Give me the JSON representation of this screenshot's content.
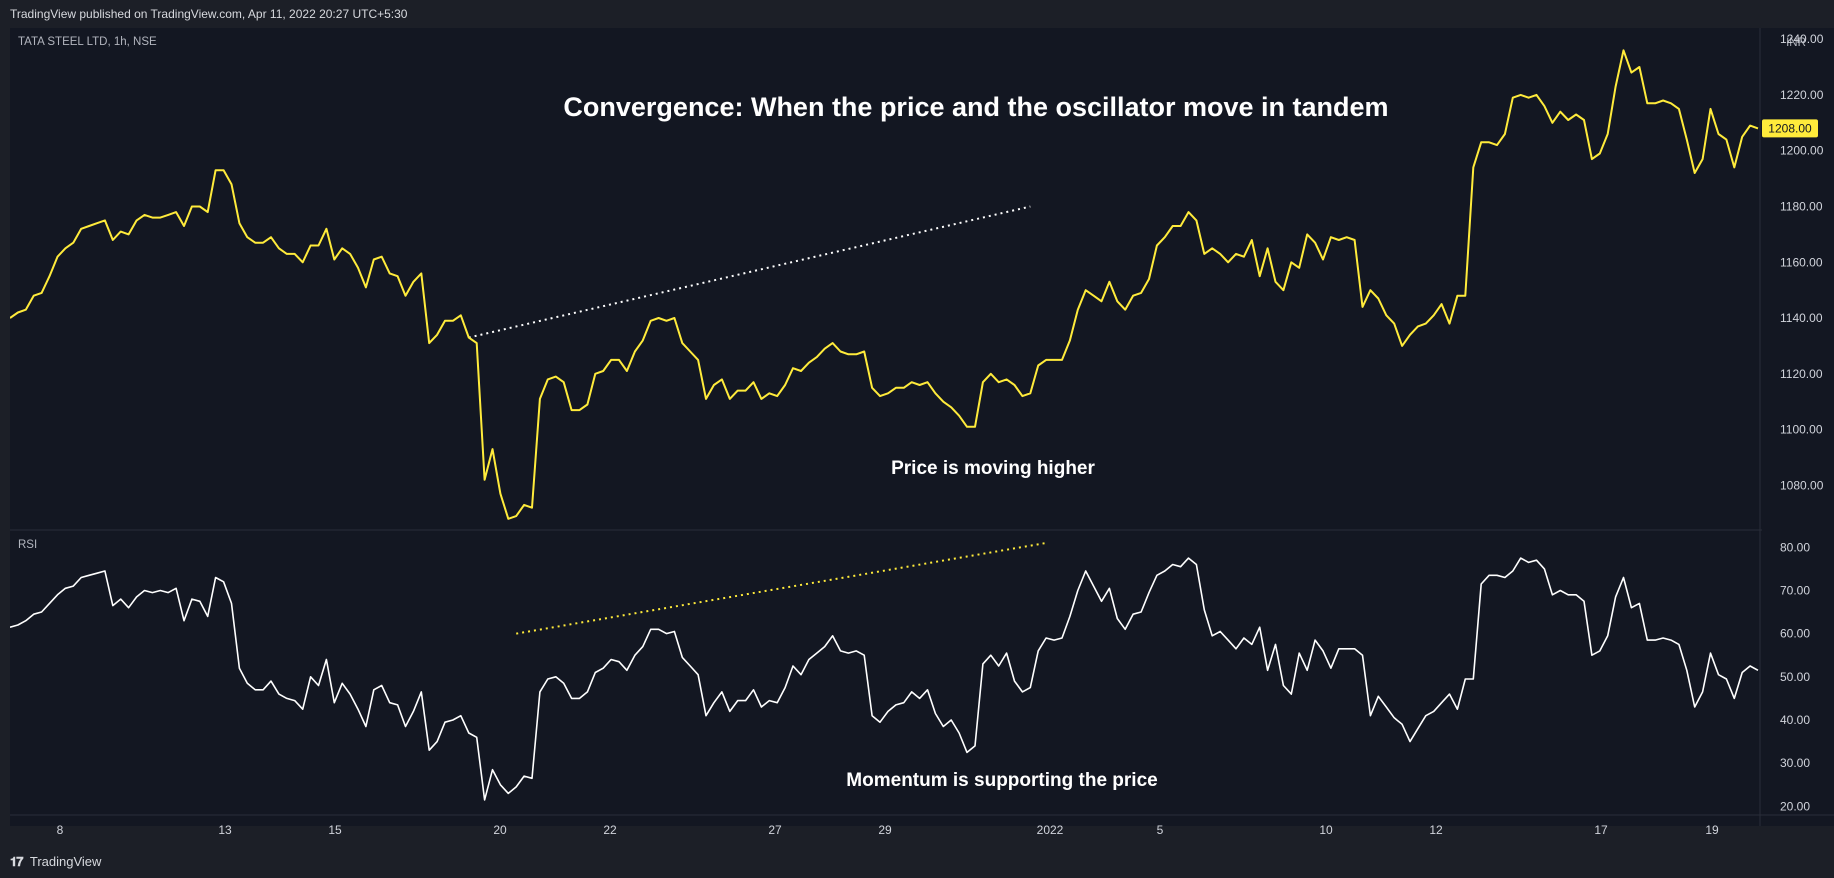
{
  "header": {
    "text": "TradingView published on TradingView.com, Apr 11, 2022 20:27 UTC+5:30"
  },
  "footer": {
    "logo_icon": "tradingview-logo-icon",
    "brand": "TradingView"
  },
  "colors": {
    "background": "#131722",
    "price_line": "#ffeb3b",
    "rsi_line": "#ffffff",
    "price_badge": "#ffeb3b"
  },
  "chart_data": {
    "type": "line",
    "title": "Convergence: When the price and the oscillator move in tandem",
    "x_labels": [
      "8",
      "13",
      "15",
      "20",
      "22",
      "27",
      "29",
      "2022",
      "5",
      "10",
      "12",
      "17",
      "19"
    ],
    "price_pane": {
      "symbol_label": "TATA STEEL LTD, 1h, NSE",
      "currency": "INR",
      "last_price": "1208.00",
      "ylim": [
        1064,
        1244
      ],
      "y_ticks": [
        "1240.00",
        "1220.00",
        "1200.00",
        "1180.00",
        "1160.00",
        "1140.00",
        "1120.00",
        "1100.00",
        "1080.00"
      ],
      "annotation": "Price is moving higher",
      "trendline": {
        "style": "dotted",
        "color": "#ffffff",
        "from": {
          "index": 58,
          "value": 1133
        },
        "to": {
          "index": 129,
          "value": 1180
        }
      },
      "series": [
        {
          "values": [
            1140,
            1142,
            1143,
            1148,
            1149,
            1155,
            1162,
            1165,
            1167,
            1172,
            1173,
            1174,
            1175,
            1168,
            1171,
            1170,
            1175,
            1177,
            1176,
            1176,
            1177,
            1178,
            1173,
            1180,
            1180,
            1178,
            1193,
            1193,
            1188,
            1174,
            1169,
            1167,
            1167,
            1169,
            1165,
            1163,
            1163,
            1160,
            1166,
            1166,
            1172,
            1161,
            1165,
            1163,
            1158,
            1151,
            1161,
            1162,
            1156,
            1155,
            1148,
            1153,
            1156,
            1131,
            1134,
            1139,
            1139,
            1141,
            1133,
            1131,
            1082,
            1093,
            1077,
            1068,
            1069,
            1073,
            1072,
            1111,
            1118,
            1119,
            1117,
            1107,
            1107,
            1109,
            1120,
            1121,
            1125,
            1125,
            1121,
            1128,
            1132,
            1139,
            1140,
            1139,
            1140,
            1131,
            1128,
            1125,
            1111,
            1116,
            1118,
            1111,
            1114,
            1114,
            1117,
            1111,
            1113,
            1112,
            1116,
            1122,
            1121,
            1124,
            1126,
            1129,
            1131,
            1128,
            1127,
            1127,
            1128,
            1115,
            1112,
            1113,
            1115,
            1115,
            1117,
            1116,
            1117,
            1113,
            1110,
            1108,
            1105,
            1101,
            1101,
            1117,
            1120,
            1117,
            1118,
            1116,
            1112,
            1113,
            1123,
            1125,
            1125,
            1125,
            1132,
            1143,
            1150,
            1148,
            1146,
            1153,
            1146,
            1143,
            1148,
            1149,
            1154,
            1166,
            1169,
            1173,
            1173,
            1178,
            1175,
            1163,
            1165,
            1163,
            1160,
            1163,
            1162,
            1168,
            1155,
            1165,
            1153,
            1150,
            1160,
            1158,
            1170,
            1167,
            1161,
            1169,
            1168,
            1169,
            1168,
            1144,
            1150,
            1147,
            1141,
            1138,
            1130,
            1134,
            1137,
            1138,
            1141,
            1145,
            1138,
            1148,
            1148,
            1194,
            1203,
            1203,
            1202,
            1206,
            1219,
            1220,
            1219,
            1220,
            1216,
            1210,
            1214,
            1211,
            1213,
            1211,
            1197,
            1199,
            1206,
            1223,
            1236,
            1228,
            1230,
            1217,
            1217,
            1218,
            1217,
            1215,
            1204,
            1192,
            1197,
            1215,
            1206,
            1204,
            1194,
            1205,
            1209,
            1208
          ]
        }
      ]
    },
    "rsi_pane": {
      "label": "RSI",
      "ylim": [
        18,
        84
      ],
      "y_ticks": [
        "80.00",
        "70.00",
        "60.00",
        "50.00",
        "40.00",
        "30.00",
        "20.00"
      ],
      "annotation": "Momentum is supporting the price",
      "trendline": {
        "style": "dotted",
        "color": "#ffeb3b",
        "from": {
          "index": 64,
          "value": 60
        },
        "to": {
          "index": 131,
          "value": 81
        }
      },
      "series": [
        {
          "values": [
            61.5,
            62,
            63,
            64.5,
            65,
            67,
            69,
            70.5,
            71,
            73,
            73.5,
            74,
            74.5,
            66.5,
            68,
            66,
            68.5,
            70,
            69.5,
            70,
            69.5,
            70.5,
            63,
            68,
            67.5,
            64,
            73,
            72,
            67,
            52,
            48.5,
            47,
            47,
            49,
            46,
            45,
            44.5,
            42.5,
            50,
            48,
            54,
            44,
            48.5,
            46,
            42.5,
            38.5,
            47,
            48,
            44,
            43.5,
            38.5,
            42,
            46.5,
            33,
            35,
            39.5,
            40,
            41,
            37,
            36,
            21.5,
            28.5,
            25,
            23,
            24.5,
            27,
            26.5,
            46.5,
            49.5,
            50,
            48.5,
            45,
            45,
            46.5,
            51,
            52,
            54,
            53.5,
            51.5,
            55,
            57,
            61,
            61,
            60,
            60.5,
            54.5,
            52.5,
            50.5,
            41,
            44,
            46.5,
            42,
            44.5,
            44.5,
            47,
            43,
            44.5,
            44,
            47.5,
            52.5,
            50.5,
            54,
            55.5,
            57,
            59.5,
            56,
            55.5,
            56,
            55,
            41,
            39.5,
            42,
            43.5,
            44,
            46.5,
            45,
            47,
            41.5,
            38.5,
            40,
            37,
            32.5,
            34,
            53,
            55,
            52.5,
            55.5,
            49,
            46.5,
            47.5,
            56,
            59,
            58.5,
            59,
            64,
            70,
            74.5,
            71,
            67.5,
            70.5,
            63.5,
            61,
            64.5,
            65,
            69.5,
            73.5,
            74.5,
            76,
            75.5,
            77.5,
            76,
            65.5,
            59.5,
            60.5,
            58.5,
            56.5,
            59,
            57.5,
            61.5,
            51.5,
            57.5,
            48,
            46,
            55.5,
            51.5,
            58.5,
            56,
            52,
            56.5,
            56.5,
            56.5,
            55,
            41,
            45.5,
            43,
            40.5,
            39,
            35,
            38,
            41,
            42,
            44,
            46,
            42.5,
            49.5,
            49.5,
            71.5,
            73.5,
            73.5,
            73,
            74.5,
            77.5,
            76.5,
            77,
            75,
            69,
            70,
            69,
            69,
            67.5,
            55,
            56,
            59.5,
            68.5,
            73,
            66,
            67,
            58.5,
            58.5,
            59,
            58.5,
            57.5,
            51.5,
            43,
            46.5,
            55.5,
            50.5,
            49.5,
            45,
            51,
            52.5,
            51.5
          ]
        }
      ]
    }
  }
}
